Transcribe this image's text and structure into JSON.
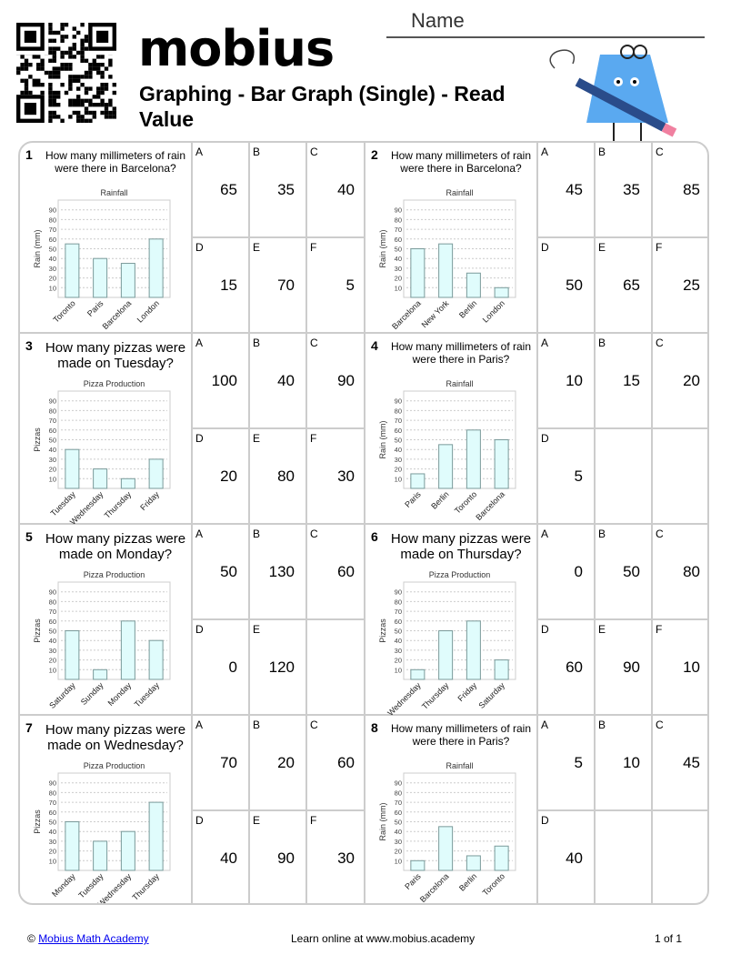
{
  "header": {
    "logo": "mobius",
    "title": "Graphing - Bar Graph (Single) - Read Value",
    "name_label": "Name"
  },
  "colors": {
    "bar_fill": "#e0fcfc",
    "bar_stroke": "#7a9a9a",
    "border": "#cccccc",
    "logo_drop": "#3a8fd8",
    "mascot": "#5aa9f0"
  },
  "questions": [
    {
      "num": "1",
      "text": "How many millimeters of rain were there in Barcelona?",
      "chart": {
        "title": "Rainfall",
        "ylabel": "Rain (mm)",
        "categories": [
          "Toronto",
          "Paris",
          "Barcelona",
          "London"
        ],
        "values": [
          55,
          40,
          35,
          60
        ]
      },
      "options": [
        [
          "A",
          "65"
        ],
        [
          "B",
          "35"
        ],
        [
          "C",
          "40"
        ],
        [
          "D",
          "15"
        ],
        [
          "E",
          "70"
        ],
        [
          "F",
          "5"
        ]
      ]
    },
    {
      "num": "2",
      "text": "How many millimeters of rain were there in Barcelona?",
      "chart": {
        "title": "Rainfall",
        "ylabel": "Rain (mm)",
        "categories": [
          "Barcelona",
          "New York",
          "Berlin",
          "London"
        ],
        "values": [
          50,
          55,
          25,
          10
        ]
      },
      "options": [
        [
          "A",
          "45"
        ],
        [
          "B",
          "35"
        ],
        [
          "C",
          "85"
        ],
        [
          "D",
          "50"
        ],
        [
          "E",
          "65"
        ],
        [
          "F",
          "25"
        ]
      ]
    },
    {
      "num": "3",
      "text": "How many pizzas were made on Tuesday?",
      "chart": {
        "title": "Pizza Production",
        "ylabel": "Pizzas",
        "categories": [
          "Tuesday",
          "Wednesday",
          "Thursday",
          "Friday"
        ],
        "values": [
          40,
          20,
          10,
          30
        ]
      },
      "options": [
        [
          "A",
          "100"
        ],
        [
          "B",
          "40"
        ],
        [
          "C",
          "90"
        ],
        [
          "D",
          "20"
        ],
        [
          "E",
          "80"
        ],
        [
          "F",
          "30"
        ]
      ]
    },
    {
      "num": "4",
      "text": "How many millimeters of rain were there in Paris?",
      "chart": {
        "title": "Rainfall",
        "ylabel": "Rain (mm)",
        "categories": [
          "Paris",
          "Berlin",
          "Toronto",
          "Barcelona"
        ],
        "values": [
          15,
          45,
          60,
          50
        ]
      },
      "options": [
        [
          "A",
          "10"
        ],
        [
          "B",
          "15"
        ],
        [
          "C",
          "20"
        ],
        [
          "D",
          "5"
        ]
      ]
    },
    {
      "num": "5",
      "text": "How many pizzas were made on Monday?",
      "chart": {
        "title": "Pizza Production",
        "ylabel": "Pizzas",
        "categories": [
          "Saturday",
          "Sunday",
          "Monday",
          "Tuesday"
        ],
        "values": [
          50,
          10,
          60,
          40
        ]
      },
      "options": [
        [
          "A",
          "50"
        ],
        [
          "B",
          "130"
        ],
        [
          "C",
          "60"
        ],
        [
          "D",
          "0"
        ],
        [
          "E",
          "120"
        ]
      ]
    },
    {
      "num": "6",
      "text": "How many pizzas were made on Thursday?",
      "chart": {
        "title": "Pizza Production",
        "ylabel": "Pizzas",
        "categories": [
          "Wednesday",
          "Thursday",
          "Friday",
          "Saturday"
        ],
        "values": [
          10,
          50,
          60,
          20
        ]
      },
      "options": [
        [
          "A",
          "0"
        ],
        [
          "B",
          "50"
        ],
        [
          "C",
          "80"
        ],
        [
          "D",
          "60"
        ],
        [
          "E",
          "90"
        ],
        [
          "F",
          "10"
        ]
      ]
    },
    {
      "num": "7",
      "text": "How many pizzas were made on Wednesday?",
      "chart": {
        "title": "Pizza Production",
        "ylabel": "Pizzas",
        "categories": [
          "Monday",
          "Tuesday",
          "Wednesday",
          "Thursday"
        ],
        "values": [
          50,
          30,
          40,
          70
        ]
      },
      "options": [
        [
          "A",
          "70"
        ],
        [
          "B",
          "20"
        ],
        [
          "C",
          "60"
        ],
        [
          "D",
          "40"
        ],
        [
          "E",
          "90"
        ],
        [
          "F",
          "30"
        ]
      ]
    },
    {
      "num": "8",
      "text": "How many millimeters of rain were there in Paris?",
      "chart": {
        "title": "Rainfall",
        "ylabel": "Rain (mm)",
        "categories": [
          "Paris",
          "Barcelona",
          "Berlin",
          "Toronto"
        ],
        "values": [
          10,
          45,
          15,
          25
        ]
      },
      "options": [
        [
          "A",
          "5"
        ],
        [
          "B",
          "10"
        ],
        [
          "C",
          "45"
        ],
        [
          "D",
          "40"
        ]
      ]
    }
  ],
  "chart_axis": {
    "yticks": [
      10,
      20,
      30,
      40,
      50,
      60,
      70,
      80,
      90
    ],
    "ylim": [
      0,
      100
    ],
    "grid": true
  },
  "footer": {
    "copyright": "©",
    "academy_link": "Mobius Math Academy",
    "learn": "Learn online at www.mobius.academy",
    "page": "1 of 1"
  }
}
